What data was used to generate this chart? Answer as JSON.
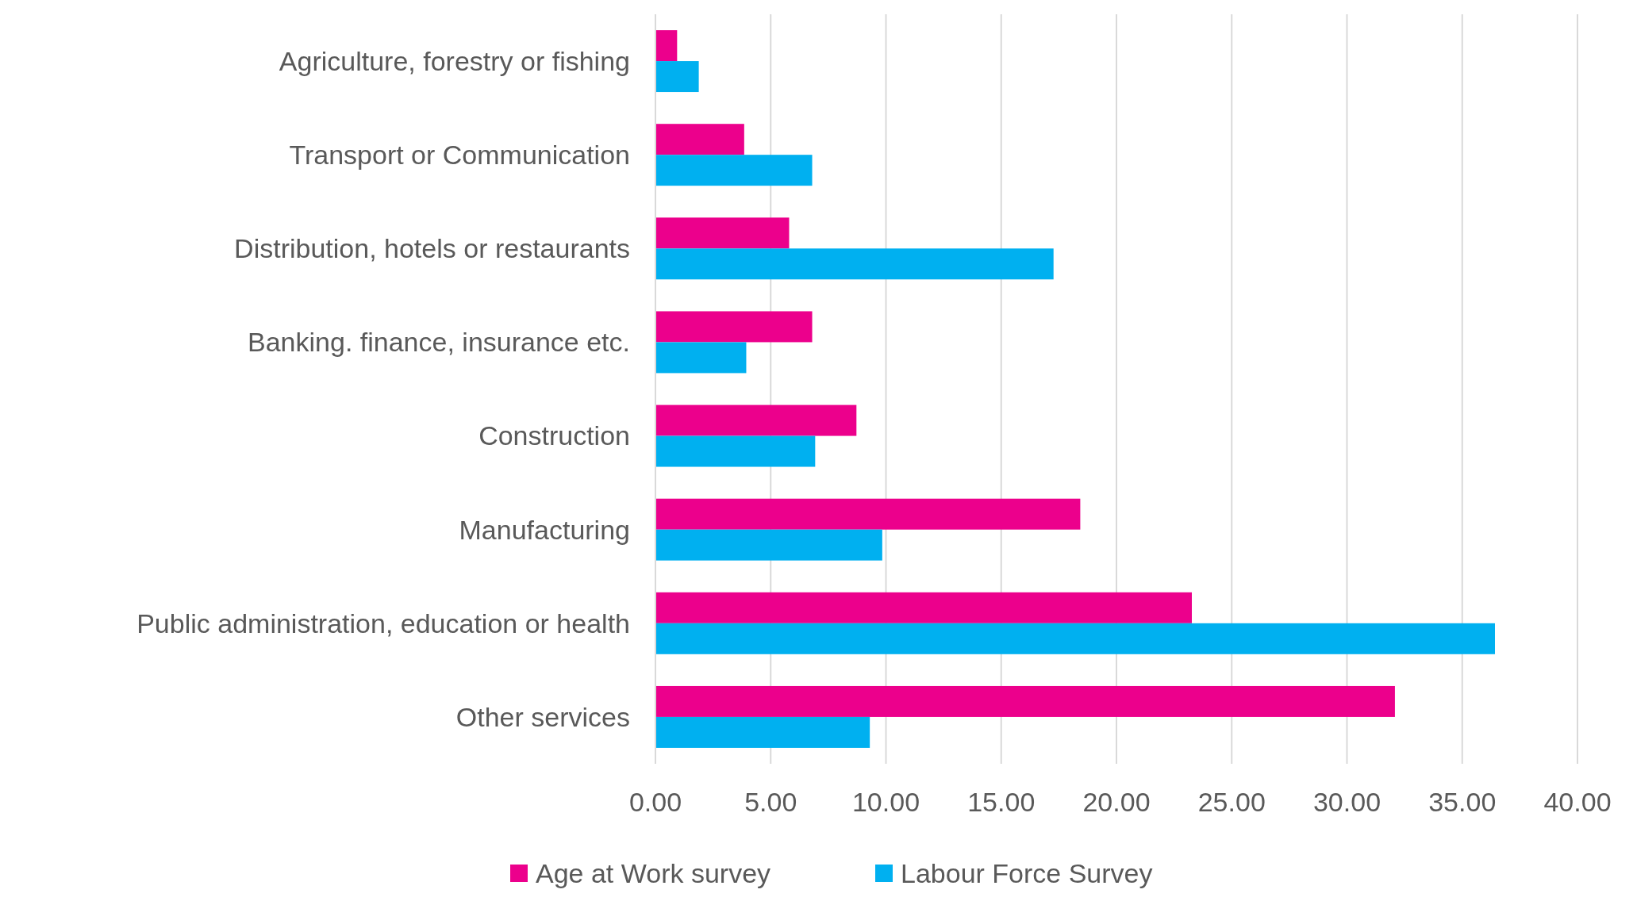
{
  "chart_data": {
    "type": "bar",
    "orientation": "horizontal",
    "categories": [
      "Agriculture, forestry or fishing",
      "Transport or Communication",
      "Distribution, hotels or restaurants",
      "Banking. finance, insurance etc.",
      "Construction",
      "Manufacturing",
      "Public administration, education or health",
      "Other services"
    ],
    "series": [
      {
        "name": "Age at Work survey",
        "color": "#ec008c",
        "values": [
          0.94,
          3.85,
          5.8,
          6.8,
          8.72,
          18.43,
          23.27,
          32.08
        ]
      },
      {
        "name": "Labour Force Survey",
        "color": "#00b0f0",
        "values": [
          1.88,
          6.8,
          17.27,
          3.94,
          6.93,
          9.84,
          36.42,
          9.3
        ]
      }
    ],
    "xlim": [
      0,
      40
    ],
    "xticks": [
      {
        "value": 0,
        "label": "0.00"
      },
      {
        "value": 5,
        "label": "5.00"
      },
      {
        "value": 10,
        "label": "10.00"
      },
      {
        "value": 15,
        "label": "15.00"
      },
      {
        "value": 20,
        "label": "20.00"
      },
      {
        "value": 25,
        "label": "25.00"
      },
      {
        "value": 30,
        "label": "30.00"
      },
      {
        "value": 35,
        "label": "35.00"
      },
      {
        "value": 40,
        "label": "40.00"
      }
    ],
    "grid": "x",
    "legend": "bottom"
  }
}
